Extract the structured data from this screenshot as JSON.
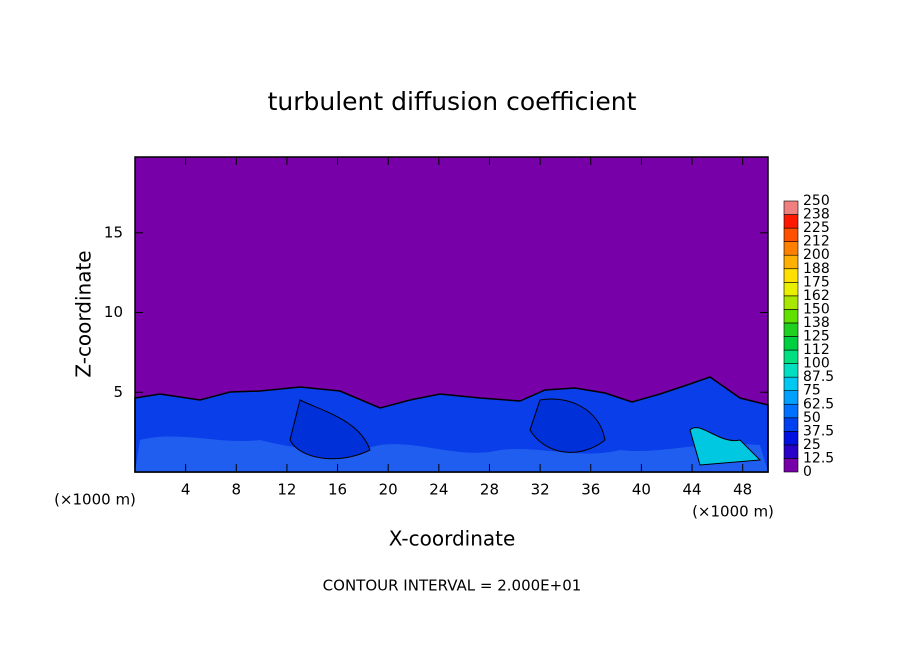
{
  "chart_data": {
    "type": "contour",
    "title": "turbulent diffusion coefficient",
    "x_label": "X-coordinate",
    "y_label": "Z-coordinate",
    "x_unit_label": "(×1000 m)",
    "footer": "CONTOUR INTERVAL = 2.000E+01",
    "xlim": [
      0,
      50
    ],
    "ylim": [
      0,
      19.75
    ],
    "xticks": [
      4,
      8,
      12,
      16,
      20,
      24,
      28,
      32,
      36,
      40,
      44,
      48
    ],
    "yticks": [
      5,
      10,
      15
    ],
    "colorbar": {
      "levels": [
        0,
        12.5,
        25,
        37.5,
        50,
        62.5,
        75,
        87.5,
        100,
        {
          "value": 112.5,
          "label": "112"
        },
        125,
        {
          "value": 137.5,
          "label": "138"
        },
        150,
        {
          "value": 162.5,
          "label": "162"
        },
        175,
        {
          "value": 187.5,
          "label": "188"
        },
        200,
        {
          "value": 212.5,
          "label": "212"
        },
        225,
        {
          "value": 237.5,
          "label": "238"
        },
        250
      ],
      "colors": [
        "#7800a8",
        "#2800c8",
        "#0010e0",
        "#0040f0",
        "#0070ff",
        "#00a0ff",
        "#00c8f0",
        "#00e0c0",
        "#00e080",
        "#00d040",
        "#20d020",
        "#60e000",
        "#a8e800",
        "#e8f000",
        "#ffe000",
        "#ffb000",
        "#ff8000",
        "#ff5000",
        "#ff1800",
        "#f08080"
      ]
    }
  }
}
